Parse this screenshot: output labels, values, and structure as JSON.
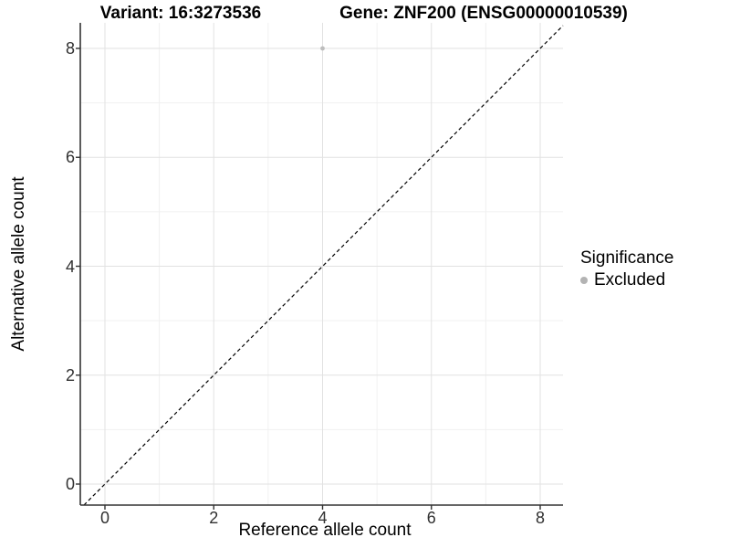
{
  "figure": {
    "title_left": "Variant: 16:3273536",
    "title_right": "Gene: ZNF200 (ENSG00000010539)"
  },
  "chart_data": {
    "type": "scatter",
    "title_left": "Variant: 16:3273536",
    "title_right": "Gene: ZNF200 (ENSG00000010539)",
    "xlabel": "Reference allele count",
    "ylabel": "Alternative allele count",
    "xlim": [
      -0.45,
      8.45
    ],
    "ylim": [
      -0.45,
      8.45
    ],
    "x_ticks": [
      0,
      2,
      4,
      6,
      8
    ],
    "y_ticks": [
      0,
      2,
      4,
      6,
      8
    ],
    "x_minor_ticks": [
      1,
      3,
      5,
      7
    ],
    "y_minor_ticks": [
      1,
      3,
      5,
      7
    ],
    "grid": "major+minor",
    "points": [
      {
        "x": 4,
        "y": 8,
        "series": "Excluded"
      }
    ],
    "reference_line": {
      "type": "identity",
      "style": "dashed",
      "color": "#000000"
    },
    "legend": {
      "title": "Significance",
      "position": "right",
      "items": [
        {
          "label": "Excluded",
          "color": "#b3b3b3"
        }
      ]
    },
    "colors": {
      "point": "#bdbdbd",
      "grid_major": "#e2e2e2",
      "grid_minor": "#f0f0f0",
      "axis_line": "#333333",
      "tick_text": "#303030"
    }
  }
}
